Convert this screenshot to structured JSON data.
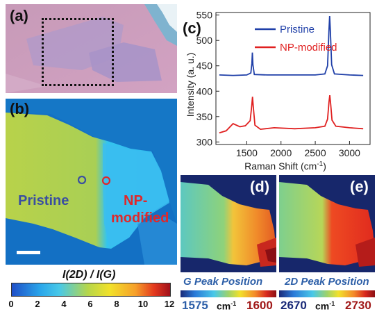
{
  "panels": {
    "a": "(a)",
    "b": "(b)",
    "c": "(c)",
    "d": "(d)",
    "e": "(e)"
  },
  "panel_b": {
    "region_left": "Pristine",
    "region_right_1": "NP-",
    "region_right_2": "modified",
    "colorbar_title": "I(2D) / I(G)",
    "colorbar_ticks": [
      "0",
      "2",
      "4",
      "6",
      "8",
      "10",
      "12"
    ]
  },
  "panel_d": {
    "caption": "G Peak Position",
    "min": "1575",
    "unit": "cm",
    "unit_sup": "-1",
    "max": "1600"
  },
  "panel_e": {
    "caption": "2D Peak Position",
    "min": "2670",
    "max": "2730"
  },
  "colors": {
    "pristine": "#1f3fa8",
    "np_modified": "#e02020",
    "min_label": "#2d5fa8",
    "max_label": "#a01818"
  },
  "chart_data": {
    "type": "line",
    "xlabel": "Raman Shift (cm",
    "xlabel_sup": "-1",
    "xlabel_end": ")",
    "ylabel": "Intensity (a. u.)",
    "xlim": [
      1050,
      3300
    ],
    "ylim": [
      295,
      555
    ],
    "xticks": [
      1500,
      2000,
      2500,
      3000
    ],
    "yticks": [
      300,
      350,
      400,
      450,
      500,
      550
    ],
    "legend": "top-left",
    "series": [
      {
        "name": "Pristine",
        "color": "#1f3fa8",
        "x": [
          1100,
          1300,
          1500,
          1560,
          1575,
          1582,
          1590,
          1610,
          1800,
          2200,
          2500,
          2640,
          2680,
          2700,
          2710,
          2720,
          2740,
          2780,
          3000,
          3200
        ],
        "y": [
          432,
          431,
          432,
          436,
          455,
          476,
          452,
          433,
          432,
          432,
          432,
          434,
          450,
          520,
          548,
          520,
          452,
          434,
          432,
          431
        ]
      },
      {
        "name": "NP-modified",
        "color": "#e02020",
        "x": [
          1100,
          1200,
          1300,
          1400,
          1480,
          1550,
          1572,
          1584,
          1596,
          1620,
          1700,
          1900,
          2200,
          2500,
          2640,
          2680,
          2700,
          2712,
          2724,
          2745,
          2800,
          3000,
          3200
        ],
        "y": [
          318,
          322,
          336,
          330,
          332,
          342,
          370,
          389,
          368,
          333,
          325,
          328,
          326,
          328,
          331,
          345,
          378,
          392,
          376,
          343,
          331,
          328,
          326
        ]
      }
    ]
  }
}
